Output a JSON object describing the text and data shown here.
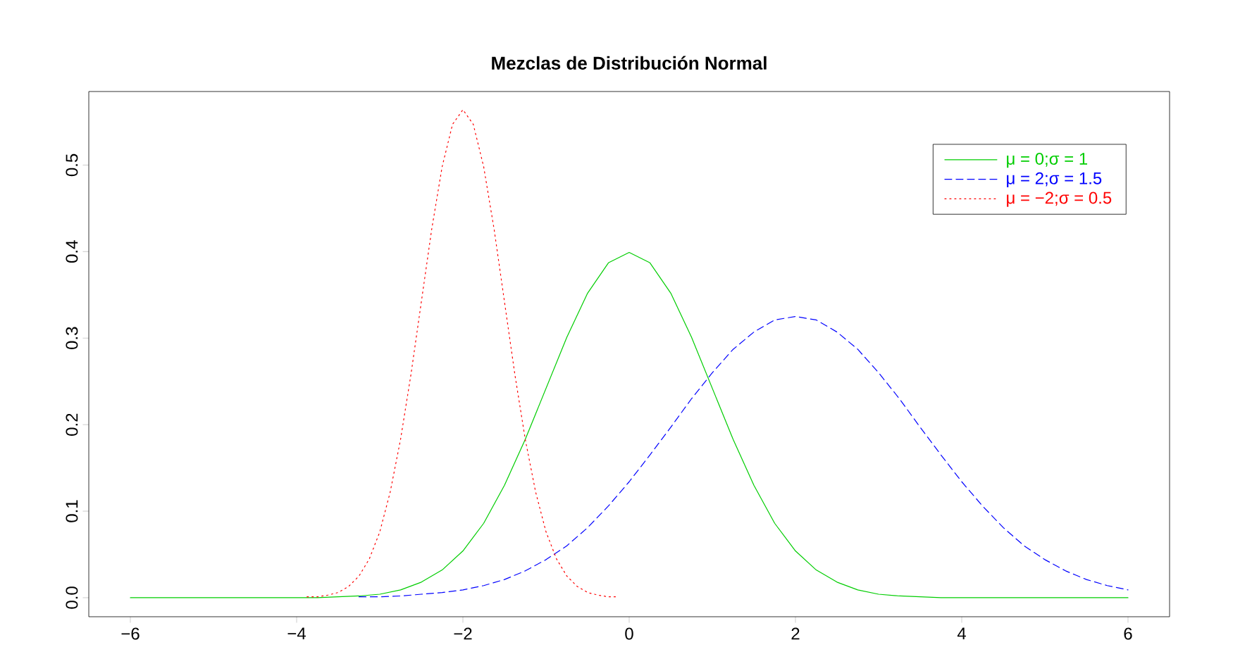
{
  "chart_data": {
    "type": "line",
    "title": "Mezclas de Distribución Normal",
    "x": [
      -6,
      -5.75,
      -5.5,
      -5.25,
      -5,
      -4.75,
      -4.5,
      -4.25,
      -4,
      -3.75,
      -3.5,
      -3.25,
      -3,
      -2.75,
      -2.5,
      -2.25,
      -2,
      -1.75,
      -1.5,
      -1.25,
      -1,
      -0.75,
      -0.5,
      -0.25,
      0,
      0.25,
      0.5,
      0.75,
      1,
      1.25,
      1.5,
      1.75,
      2,
      2.25,
      2.5,
      2.75,
      3,
      3.25,
      3.5,
      3.75,
      4,
      4.25,
      4.5,
      4.75,
      5,
      5.25,
      5.5,
      5.75,
      6
    ],
    "series": [
      {
        "name": "μ = 0;σ = 1",
        "color": "#00cd00",
        "line_style": "solid",
        "values": [
          0,
          0,
          0,
          0,
          0,
          0,
          0,
          0,
          0,
          0,
          0.001,
          0.002,
          0.004,
          0.009,
          0.018,
          0.032,
          0.054,
          0.086,
          0.13,
          0.183,
          0.242,
          0.301,
          0.352,
          0.387,
          0.399,
          0.387,
          0.352,
          0.301,
          0.242,
          0.183,
          0.13,
          0.086,
          0.054,
          0.032,
          0.018,
          0.009,
          0.004,
          0.002,
          0.001,
          0,
          0,
          0,
          0,
          0,
          0,
          0,
          0,
          0,
          0
        ]
      },
      {
        "name": "μ = 2;σ = 1.5",
        "color": "#0000ff",
        "line_style": "dashed",
        "values": [
          null,
          null,
          null,
          null,
          null,
          null,
          null,
          null,
          null,
          null,
          null,
          0.001,
          0.001,
          0.002,
          0.004,
          0.006,
          0.009,
          0.014,
          0.021,
          0.031,
          0.044,
          0.06,
          0.081,
          0.106,
          0.134,
          0.165,
          0.197,
          0.23,
          0.26,
          0.287,
          0.307,
          0.321,
          0.325,
          0.321,
          0.307,
          0.287,
          0.26,
          0.23,
          0.197,
          0.165,
          0.134,
          0.106,
          0.081,
          0.06,
          0.044,
          0.031,
          0.021,
          0.014,
          0.009
        ]
      },
      {
        "name": "μ = −2;σ = 0.5",
        "color": "#ff0000",
        "line_style": "dotted",
        "x": [
          -3.875,
          -3.75,
          -3.625,
          -3.5,
          -3.375,
          -3.25,
          -3.125,
          -3,
          -2.875,
          -2.75,
          -2.625,
          -2.5,
          -2.375,
          -2.25,
          -2.125,
          -2,
          -1.875,
          -1.75,
          -1.625,
          -1.5,
          -1.375,
          -1.25,
          -1.125,
          -1,
          -0.875,
          -0.75,
          -0.625,
          -0.5,
          -0.375,
          -0.25,
          -0.125
        ],
        "values": [
          0.001,
          0.001,
          0.003,
          0.006,
          0.013,
          0.025,
          0.045,
          0.076,
          0.122,
          0.183,
          0.258,
          0.342,
          0.426,
          0.498,
          0.547,
          0.564,
          0.547,
          0.498,
          0.426,
          0.342,
          0.258,
          0.183,
          0.122,
          0.076,
          0.045,
          0.025,
          0.013,
          0.006,
          0.003,
          0.001,
          0.001
        ]
      }
    ],
    "xlim": [
      -6.5,
      6.5
    ],
    "ylim": [
      -0.022,
      0.585
    ],
    "xticks": [
      {
        "value": -6,
        "label": "−6"
      },
      {
        "value": -4,
        "label": "−4"
      },
      {
        "value": -2,
        "label": "−2"
      },
      {
        "value": 0,
        "label": "0"
      },
      {
        "value": 2,
        "label": "2"
      },
      {
        "value": 4,
        "label": "4"
      },
      {
        "value": 6,
        "label": "6"
      }
    ],
    "yticks": [
      {
        "value": 0,
        "label": "0.0"
      },
      {
        "value": 0.1,
        "label": "0.1"
      },
      {
        "value": 0.2,
        "label": "0.2"
      },
      {
        "value": 0.3,
        "label": "0.3"
      },
      {
        "value": 0.4,
        "label": "0.4"
      },
      {
        "value": 0.5,
        "label": "0.5"
      }
    ],
    "legend": "top right",
    "grid": false
  }
}
